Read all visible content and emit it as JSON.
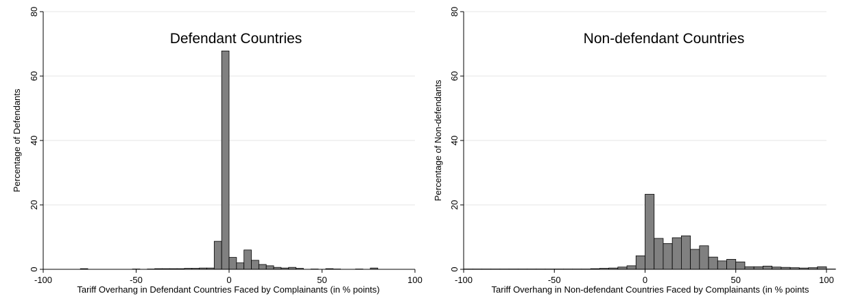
{
  "chart_data": [
    {
      "type": "bar",
      "title": "Defendant Countries",
      "xlabel": "Tariff Overhang in Defendant Countries Faced by Complainants (in % points)",
      "ylabel": "Percentage of Defendants",
      "xlim": [
        -100,
        100
      ],
      "ylim": [
        0,
        80
      ],
      "xticks": [
        -100,
        -50,
        0,
        50,
        100
      ],
      "yticks": [
        0,
        20,
        40,
        60,
        80
      ],
      "grid": true,
      "bin_width": 4,
      "bins": [
        {
          "x0": -80,
          "value": 0.2
        },
        {
          "x0": -52,
          "value": 0.1
        },
        {
          "x0": -44,
          "value": 0.1
        },
        {
          "x0": -40,
          "value": 0.2
        },
        {
          "x0": -36,
          "value": 0.2
        },
        {
          "x0": -32,
          "value": 0.2
        },
        {
          "x0": -28,
          "value": 0.2
        },
        {
          "x0": -24,
          "value": 0.3
        },
        {
          "x0": -20,
          "value": 0.3
        },
        {
          "x0": -16,
          "value": 0.4
        },
        {
          "x0": -12,
          "value": 0.4
        },
        {
          "x0": -8,
          "value": 8.7
        },
        {
          "x0": -4,
          "value": 67.8
        },
        {
          "x0": 0,
          "value": 3.7
        },
        {
          "x0": 4,
          "value": 2.0
        },
        {
          "x0": 8,
          "value": 6.0
        },
        {
          "x0": 12,
          "value": 2.8
        },
        {
          "x0": 16,
          "value": 1.5
        },
        {
          "x0": 20,
          "value": 1.1
        },
        {
          "x0": 24,
          "value": 0.6
        },
        {
          "x0": 28,
          "value": 0.4
        },
        {
          "x0": 32,
          "value": 0.6
        },
        {
          "x0": 36,
          "value": 0.3
        },
        {
          "x0": 44,
          "value": 0.1
        },
        {
          "x0": 52,
          "value": 0.2
        },
        {
          "x0": 56,
          "value": 0.1
        },
        {
          "x0": 68,
          "value": 0.1
        },
        {
          "x0": 76,
          "value": 0.4
        }
      ]
    },
    {
      "type": "bar",
      "title": "Non-defendant Countries",
      "xlabel": "Tariff Overhang in Non-defendant Countries Faced by Complainants (in % points",
      "ylabel": "Percentage of Non-defendants",
      "xlim": [
        -100,
        100
      ],
      "ylim": [
        0,
        80
      ],
      "xticks": [
        -100,
        -50,
        0,
        50,
        100
      ],
      "yticks": [
        0,
        20,
        40,
        60,
        80
      ],
      "grid": true,
      "bin_width": 5,
      "bins": [
        {
          "x0": -100,
          "value": 0.1
        },
        {
          "x0": -95,
          "value": 0.1
        },
        {
          "x0": -90,
          "value": 0.1
        },
        {
          "x0": -85,
          "value": 0.1
        },
        {
          "x0": -80,
          "value": 0.1
        },
        {
          "x0": -75,
          "value": 0.1
        },
        {
          "x0": -70,
          "value": 0.1
        },
        {
          "x0": -65,
          "value": 0.1
        },
        {
          "x0": -60,
          "value": 0.1
        },
        {
          "x0": -55,
          "value": 0.1
        },
        {
          "x0": -50,
          "value": 0.1
        },
        {
          "x0": -45,
          "value": 0.1
        },
        {
          "x0": -40,
          "value": 0.1
        },
        {
          "x0": -35,
          "value": 0.1
        },
        {
          "x0": -30,
          "value": 0.2
        },
        {
          "x0": -25,
          "value": 0.3
        },
        {
          "x0": -20,
          "value": 0.4
        },
        {
          "x0": -15,
          "value": 0.7
        },
        {
          "x0": -10,
          "value": 1.1
        },
        {
          "x0": -5,
          "value": 4.2
        },
        {
          "x0": 0,
          "value": 23.3
        },
        {
          "x0": 5,
          "value": 9.6
        },
        {
          "x0": 10,
          "value": 8.0
        },
        {
          "x0": 15,
          "value": 9.8
        },
        {
          "x0": 20,
          "value": 10.4
        },
        {
          "x0": 25,
          "value": 6.2
        },
        {
          "x0": 30,
          "value": 7.3
        },
        {
          "x0": 35,
          "value": 3.8
        },
        {
          "x0": 40,
          "value": 2.6
        },
        {
          "x0": 45,
          "value": 3.1
        },
        {
          "x0": 50,
          "value": 2.3
        },
        {
          "x0": 55,
          "value": 0.8
        },
        {
          "x0": 60,
          "value": 0.8
        },
        {
          "x0": 65,
          "value": 1.0
        },
        {
          "x0": 70,
          "value": 0.7
        },
        {
          "x0": 75,
          "value": 0.6
        },
        {
          "x0": 80,
          "value": 0.5
        },
        {
          "x0": 85,
          "value": 0.4
        },
        {
          "x0": 90,
          "value": 0.5
        },
        {
          "x0": 95,
          "value": 0.8
        },
        {
          "x0": 100,
          "value": 0.1
        }
      ]
    }
  ],
  "colors": {
    "bar_fill": "#808080",
    "bar_stroke": "#000000",
    "grid": "#e6e6e6",
    "axis": "#000000",
    "background": "#ffffff"
  }
}
